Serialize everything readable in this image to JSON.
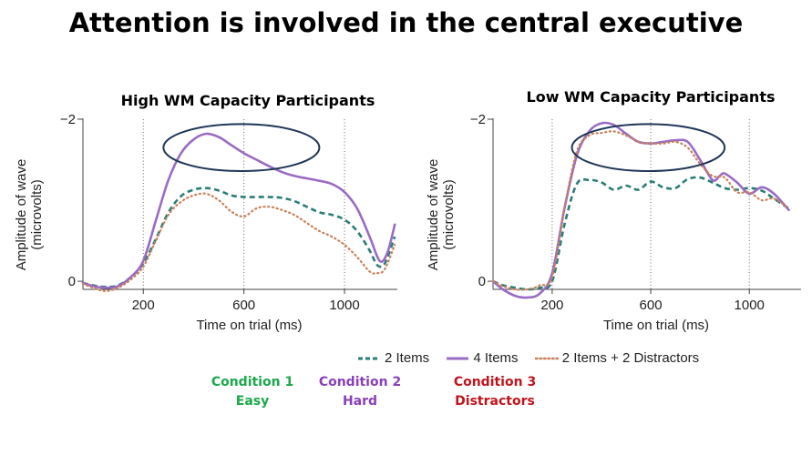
{
  "slide": {
    "title": "Attention is involved in the central executive"
  },
  "colors": {
    "items2": "#2a7d77",
    "items4": "#9a6bc4",
    "distract": "#c8825a",
    "ellipse": "#1f3658",
    "cond1": "#1aa84a",
    "cond2": "#8a3fb8",
    "cond3": "#c0141c"
  },
  "legend": [
    {
      "label": "2 Items",
      "style": "dashed"
    },
    {
      "label": "4 Items",
      "style": "solid"
    },
    {
      "label": "2 Items + 2 Distractors",
      "style": "dotted"
    }
  ],
  "conditions": [
    {
      "line1": "Condition 1",
      "line2": "Easy"
    },
    {
      "line1": "Condition 2",
      "line2": "Hard"
    },
    {
      "line1": "Condition 3",
      "line2": "Distractors"
    }
  ],
  "chart_data": [
    {
      "type": "line",
      "title": "High WM Capacity Participants",
      "xlabel": "Time on trial (ms)",
      "ylabel": "Amplitude of wave (microvolts)",
      "ylabel_lines": [
        "Amplitude of wave",
        "(microvolts)"
      ],
      "xlim": [
        -40,
        1210
      ],
      "ylim": [
        0.1,
        -2.0
      ],
      "x_ticks": [
        200,
        600,
        1000
      ],
      "y_ticks": [
        {
          "value": -2,
          "label": "−2"
        },
        {
          "value": 0,
          "label": "0"
        }
      ],
      "vlines": [
        200,
        600,
        1000
      ],
      "highlight": {
        "cx": 590,
        "cy": -1.65,
        "rx": 310,
        "ry": 0.29
      },
      "series": [
        {
          "name": "2 Items",
          "style": "dashed",
          "x": [
            -40,
            0,
            50,
            100,
            150,
            200,
            250,
            300,
            350,
            400,
            450,
            500,
            550,
            600,
            650,
            700,
            750,
            800,
            850,
            900,
            950,
            1000,
            1050,
            1100,
            1130,
            1160,
            1200
          ],
          "y": [
            0.02,
            0.05,
            0.07,
            0.05,
            -0.05,
            -0.22,
            -0.52,
            -0.85,
            -1.05,
            -1.13,
            -1.15,
            -1.12,
            -1.06,
            -1.04,
            -1.04,
            -1.04,
            -1.03,
            -0.99,
            -0.92,
            -0.85,
            -0.82,
            -0.76,
            -0.62,
            -0.38,
            -0.2,
            -0.22,
            -0.55
          ]
        },
        {
          "name": "4 Items",
          "style": "solid",
          "x": [
            -40,
            0,
            50,
            100,
            150,
            200,
            250,
            300,
            350,
            400,
            450,
            500,
            550,
            600,
            650,
            700,
            750,
            800,
            850,
            900,
            950,
            1000,
            1050,
            1100,
            1140,
            1170,
            1200
          ],
          "y": [
            0.02,
            0.06,
            0.08,
            0.06,
            -0.05,
            -0.25,
            -0.75,
            -1.25,
            -1.58,
            -1.75,
            -1.82,
            -1.78,
            -1.68,
            -1.58,
            -1.5,
            -1.42,
            -1.35,
            -1.3,
            -1.27,
            -1.24,
            -1.2,
            -1.1,
            -0.9,
            -0.55,
            -0.25,
            -0.35,
            -0.7
          ]
        },
        {
          "name": "2 Items + 2 Distractors",
          "style": "dotted",
          "x": [
            -40,
            0,
            50,
            100,
            150,
            200,
            250,
            300,
            350,
            400,
            450,
            500,
            550,
            600,
            650,
            700,
            750,
            800,
            850,
            900,
            950,
            1000,
            1050,
            1100,
            1130,
            1160,
            1200
          ],
          "y": [
            0.03,
            0.08,
            0.12,
            0.08,
            -0.02,
            -0.18,
            -0.5,
            -0.82,
            -0.98,
            -1.06,
            -1.08,
            -1.0,
            -0.86,
            -0.8,
            -0.9,
            -0.92,
            -0.88,
            -0.82,
            -0.72,
            -0.62,
            -0.55,
            -0.45,
            -0.3,
            -0.12,
            -0.1,
            -0.15,
            -0.45
          ]
        }
      ]
    },
    {
      "type": "line",
      "title": "Low WM Capacity Participants",
      "xlabel": "Time on trial (ms)",
      "ylabel": "Amplitude of wave (microvolts)",
      "ylabel_lines": [
        "Amplitude of wave",
        "(microvolts)"
      ],
      "xlim": [
        -40,
        1210
      ],
      "ylim": [
        0.1,
        -2.0
      ],
      "x_ticks": [
        200,
        600,
        1000
      ],
      "y_ticks": [
        {
          "value": -2,
          "label": "−2"
        },
        {
          "value": 0,
          "label": "0"
        }
      ],
      "vlines": [
        200,
        600,
        1000
      ],
      "highlight": {
        "cx": 590,
        "cy": -1.65,
        "rx": 310,
        "ry": 0.29
      },
      "series": [
        {
          "name": "2 Items",
          "style": "dashed",
          "x": [
            -40,
            0,
            50,
            100,
            150,
            200,
            250,
            300,
            350,
            400,
            450,
            500,
            550,
            600,
            650,
            700,
            750,
            800,
            850,
            900,
            950,
            1000,
            1050,
            1100,
            1160
          ],
          "y": [
            0.0,
            0.05,
            0.08,
            0.1,
            0.08,
            0.0,
            -0.7,
            -1.2,
            -1.25,
            -1.22,
            -1.13,
            -1.18,
            -1.13,
            -1.23,
            -1.16,
            -1.15,
            -1.26,
            -1.28,
            -1.22,
            -1.15,
            -1.13,
            -1.15,
            -1.12,
            -1.02,
            -0.9
          ]
        },
        {
          "name": "4 Items",
          "style": "solid",
          "x": [
            -40,
            0,
            50,
            100,
            150,
            200,
            250,
            300,
            350,
            400,
            450,
            500,
            550,
            600,
            650,
            700,
            750,
            800,
            850,
            880,
            900,
            950,
            1000,
            1050,
            1100,
            1160
          ],
          "y": [
            0.0,
            0.1,
            0.18,
            0.2,
            0.15,
            -0.1,
            -0.9,
            -1.55,
            -1.85,
            -1.95,
            -1.93,
            -1.82,
            -1.72,
            -1.7,
            -1.72,
            -1.74,
            -1.72,
            -1.5,
            -1.25,
            -1.3,
            -1.33,
            -1.22,
            -1.08,
            -1.16,
            -1.08,
            -0.88
          ]
        },
        {
          "name": "2 Items + 2 Distractors",
          "style": "dotted",
          "x": [
            -40,
            0,
            50,
            100,
            150,
            200,
            250,
            300,
            350,
            400,
            450,
            500,
            550,
            600,
            650,
            700,
            750,
            800,
            850,
            900,
            950,
            1000,
            1050,
            1100,
            1160
          ],
          "y": [
            0.0,
            0.06,
            0.1,
            0.1,
            0.05,
            -0.05,
            -0.9,
            -1.6,
            -1.8,
            -1.83,
            -1.85,
            -1.8,
            -1.72,
            -1.7,
            -1.7,
            -1.72,
            -1.65,
            -1.45,
            -1.3,
            -1.28,
            -1.1,
            -1.1,
            -1.0,
            -1.02,
            -0.9
          ]
        }
      ]
    }
  ]
}
